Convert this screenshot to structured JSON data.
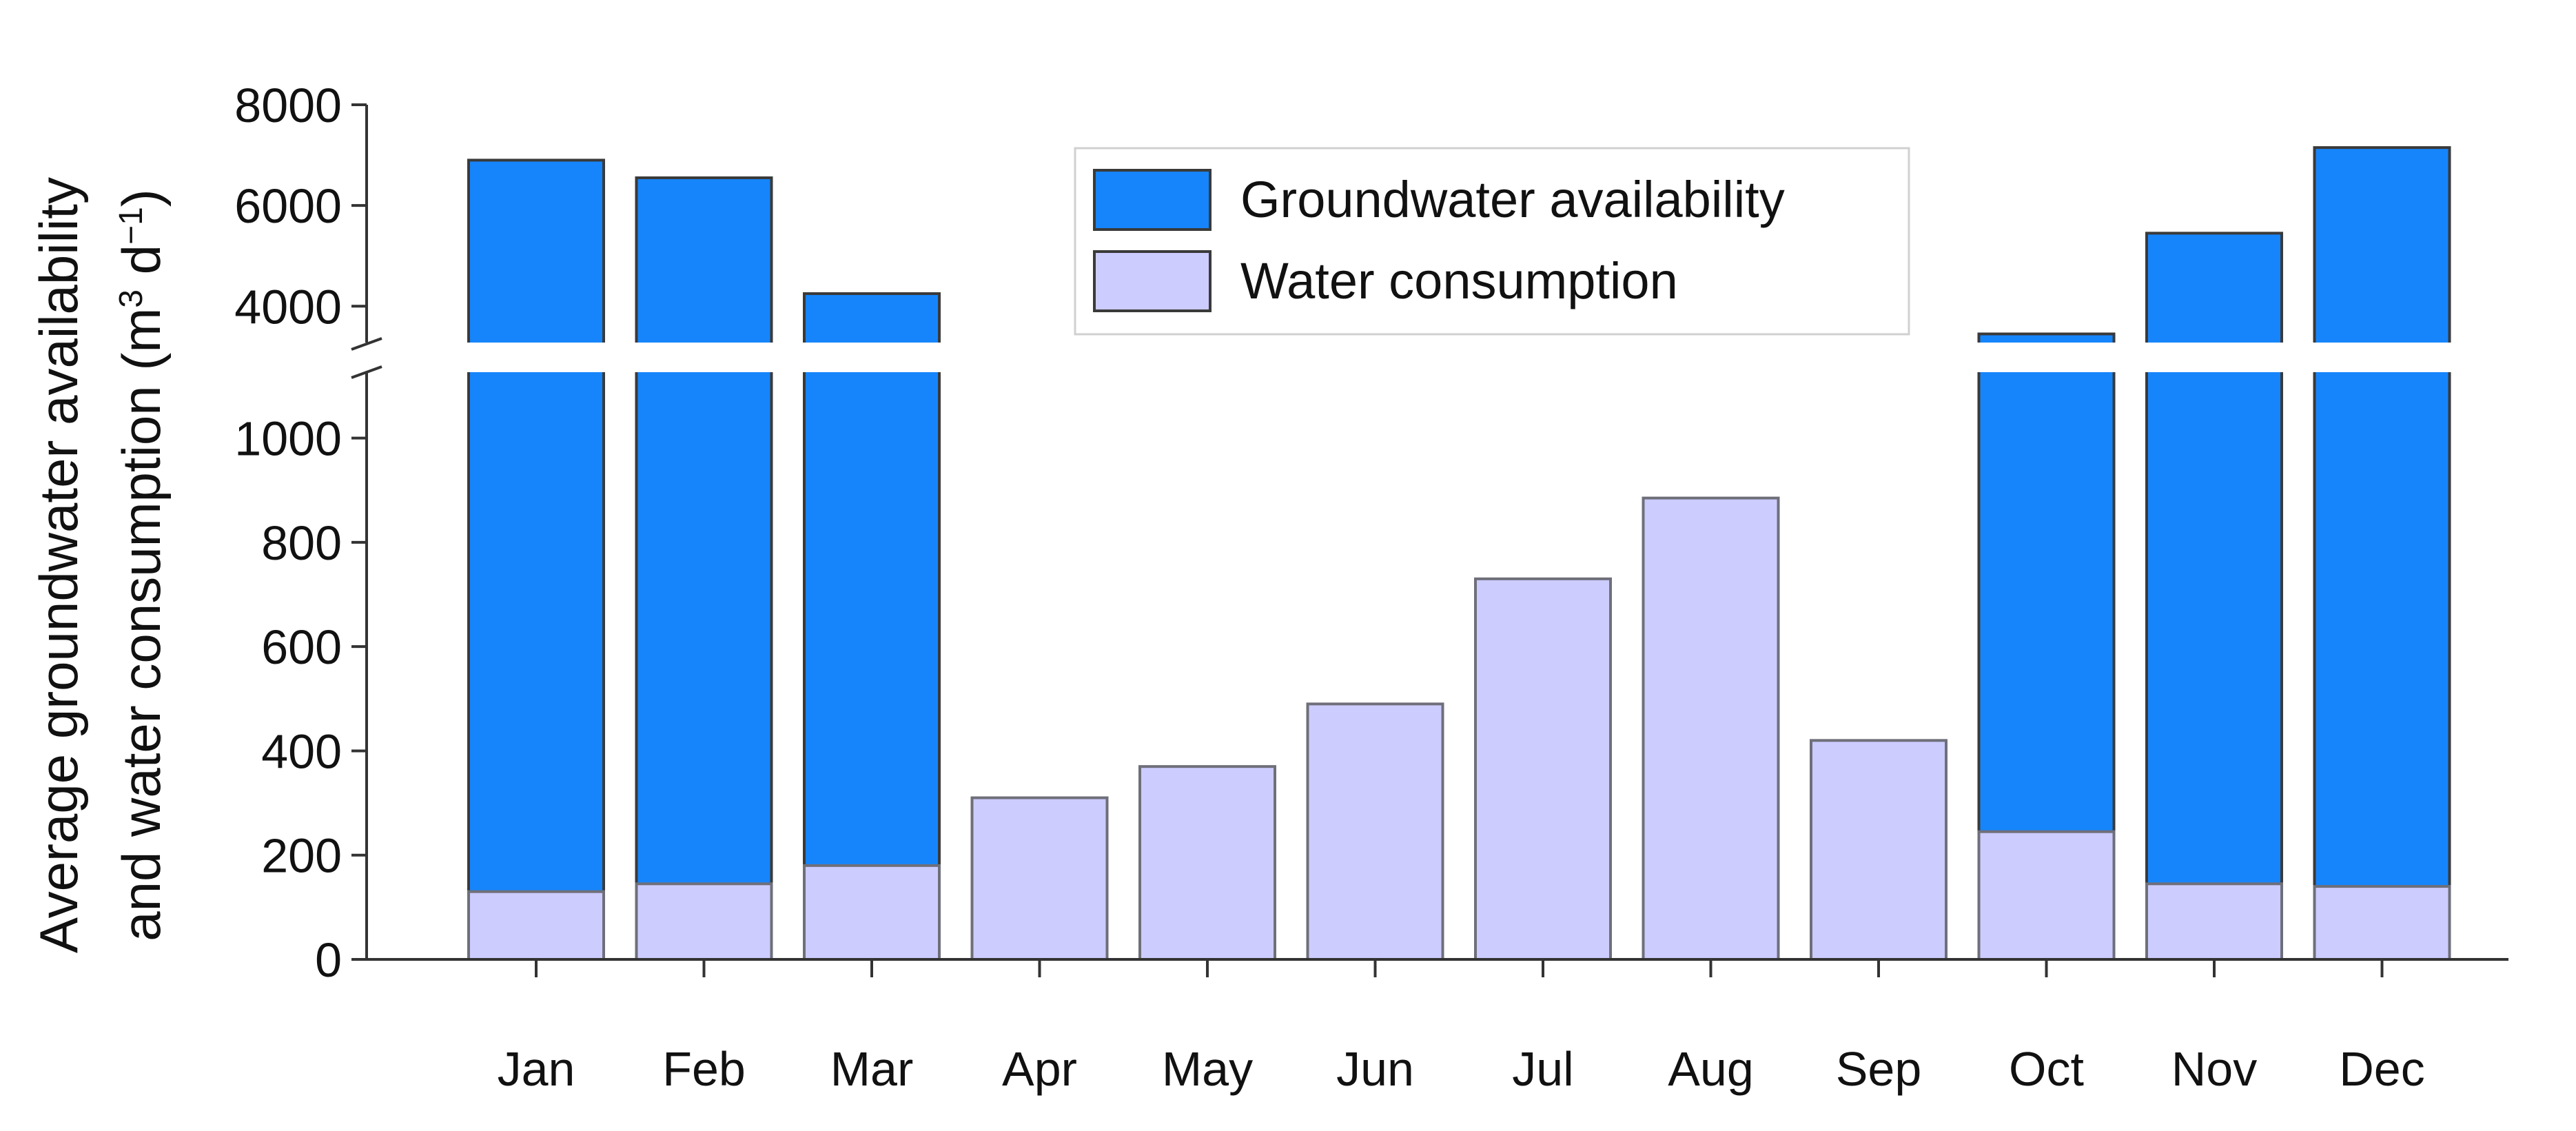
{
  "chart_data": {
    "type": "bar",
    "title": "",
    "categories": [
      "Jan",
      "Feb",
      "Mar",
      "Apr",
      "May",
      "Jun",
      "Jul",
      "Aug",
      "Sep",
      "Oct",
      "Nov",
      "Dec"
    ],
    "series": [
      {
        "name": "Groundwater availability",
        "color": "#1685fb",
        "values": [
          6900,
          6550,
          4250,
          null,
          null,
          null,
          null,
          null,
          null,
          3450,
          5450,
          7150
        ]
      },
      {
        "name": "Water consumption",
        "color": "#ccccff",
        "values": [
          130,
          145,
          180,
          310,
          370,
          490,
          730,
          885,
          420,
          245,
          145,
          140
        ]
      }
    ],
    "ylabel_line1": "Average groundwater availability",
    "ylabel_line2": "and water consumption (m",
    "ylabel_sup1": "3",
    "ylabel_mid": " d",
    "ylabel_sup2": "−1",
    "ylabel_end": ")",
    "y_axis": {
      "broken": true,
      "lower_range": [
        0,
        1100
      ],
      "upper_range": [
        2800,
        8000
      ],
      "lower_ticks": [
        0,
        200,
        400,
        600,
        800,
        1000
      ],
      "upper_ticks": [
        4000,
        6000,
        8000
      ]
    },
    "legend": {
      "position": "top-center",
      "items": [
        {
          "label": "Groundwater availability",
          "color": "#1685fb"
        },
        {
          "label": "Water consumption",
          "color": "#ccccff"
        }
      ]
    },
    "grid": false
  }
}
